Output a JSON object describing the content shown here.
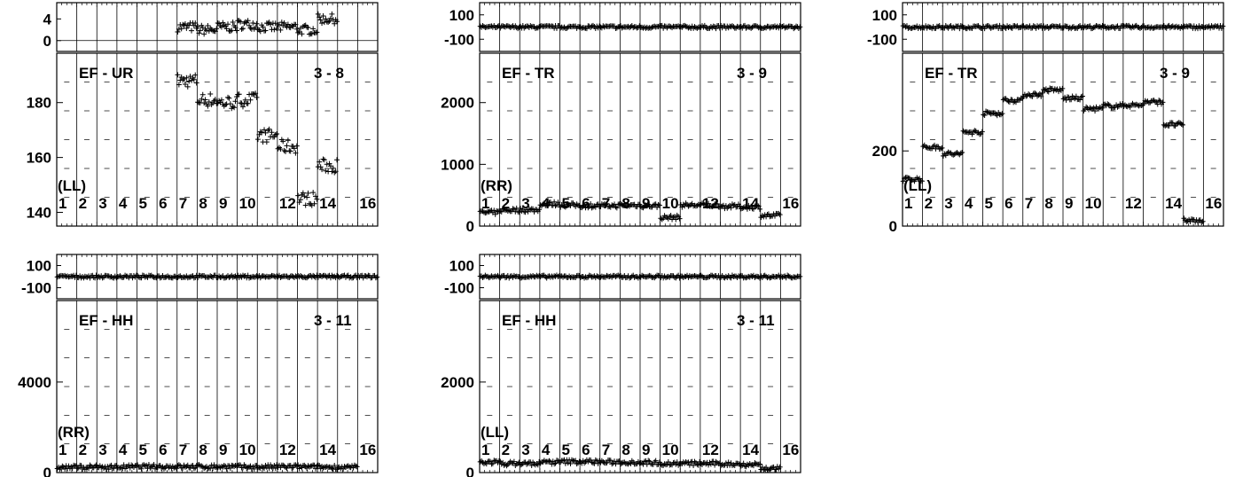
{
  "chart_data": [
    {
      "type": "scatter",
      "title": "EF - UR",
      "baseline": "3 - 8",
      "polarization": "(LL)",
      "channels": [
        "1",
        "2",
        "3",
        "4",
        "5",
        "6",
        "7",
        "8",
        "9",
        "10",
        "12",
        "14",
        "16"
      ],
      "phase": {
        "yticks": [
          "4",
          "0"
        ],
        "ylim": [
          -2,
          7
        ],
        "values": [
          null,
          null,
          null,
          null,
          null,
          null,
          2.5,
          2.0,
          2.5,
          3.0,
          2.5,
          2.5,
          2.0,
          4.0,
          null,
          null
        ]
      },
      "amp": {
        "yticks": [
          "180",
          "160",
          "140"
        ],
        "ylim": [
          135,
          198
        ],
        "values": [
          null,
          null,
          null,
          null,
          null,
          null,
          188,
          181,
          180,
          181,
          168,
          164,
          145,
          157,
          null,
          null
        ]
      }
    },
    {
      "type": "scatter",
      "title": "EF - TR",
      "baseline": "3 - 9",
      "polarization": "(RR)",
      "channels": [
        "1",
        "2",
        "3",
        "4",
        "5",
        "6",
        "7",
        "8",
        "9",
        "10",
        "12",
        "14",
        "16"
      ],
      "phase": {
        "yticks": [
          "100",
          "-100"
        ],
        "ylim": [
          -200,
          200
        ],
        "values": [
          0,
          0,
          0,
          0,
          0,
          0,
          0,
          0,
          0,
          0,
          0,
          0,
          0,
          0,
          0,
          0
        ]
      },
      "amp": {
        "yticks": [
          "2000",
          "1000",
          "0"
        ],
        "ylim": [
          0,
          2800
        ],
        "values": [
          220,
          260,
          260,
          360,
          340,
          330,
          330,
          340,
          330,
          140,
          340,
          340,
          320,
          310,
          170,
          null
        ]
      }
    },
    {
      "type": "scatter",
      "title": "EF - TR",
      "baseline": "3 - 9",
      "polarization": "(LL)",
      "channels": [
        "1",
        "2",
        "3",
        "4",
        "5",
        "6",
        "7",
        "8",
        "9",
        "10",
        "12",
        "14",
        "16"
      ],
      "phase": {
        "yticks": [
          "100",
          "-100"
        ],
        "ylim": [
          -200,
          200
        ],
        "values": [
          0,
          0,
          0,
          0,
          0,
          0,
          0,
          0,
          0,
          0,
          0,
          0,
          0,
          0,
          0,
          0
        ]
      },
      "amp": {
        "yticks": [
          "200",
          "0"
        ],
        "ylim": [
          0,
          460
        ],
        "values": [
          125,
          210,
          192,
          250,
          300,
          335,
          350,
          362,
          340,
          312,
          320,
          322,
          330,
          270,
          15,
          null
        ]
      }
    },
    {
      "type": "scatter",
      "title": "EF - HH",
      "baseline": "3 - 11",
      "polarization": "(RR)",
      "channels": [
        "1",
        "2",
        "3",
        "4",
        "5",
        "6",
        "7",
        "8",
        "9",
        "10",
        "12",
        "14",
        "16"
      ],
      "phase": {
        "yticks": [
          "100",
          "-100"
        ],
        "ylim": [
          -200,
          200
        ],
        "values": [
          0,
          0,
          0,
          0,
          0,
          0,
          0,
          0,
          0,
          0,
          0,
          0,
          0,
          0,
          0,
          0
        ]
      },
      "amp": {
        "yticks": [
          "4000",
          "0"
        ],
        "ylim": [
          0,
          7600
        ],
        "values": [
          230,
          240,
          240,
          250,
          260,
          260,
          260,
          260,
          260,
          250,
          250,
          260,
          250,
          240,
          230,
          null
        ]
      }
    },
    {
      "type": "scatter",
      "title": "EF - HH",
      "baseline": "3 - 11",
      "polarization": "(LL)",
      "channels": [
        "1",
        "2",
        "3",
        "4",
        "5",
        "6",
        "7",
        "8",
        "9",
        "10",
        "12",
        "14",
        "16"
      ],
      "phase": {
        "yticks": [
          "100",
          "-100"
        ],
        "ylim": [
          -200,
          200
        ],
        "values": [
          0,
          0,
          0,
          0,
          0,
          0,
          0,
          0,
          0,
          0,
          0,
          0,
          0,
          0,
          0,
          0
        ]
      },
      "amp": {
        "yticks": [
          "2000",
          "0"
        ],
        "ylim": [
          0,
          3800
        ],
        "values": [
          230,
          200,
          200,
          230,
          240,
          240,
          230,
          230,
          220,
          200,
          200,
          200,
          190,
          180,
          90,
          null
        ]
      }
    }
  ]
}
